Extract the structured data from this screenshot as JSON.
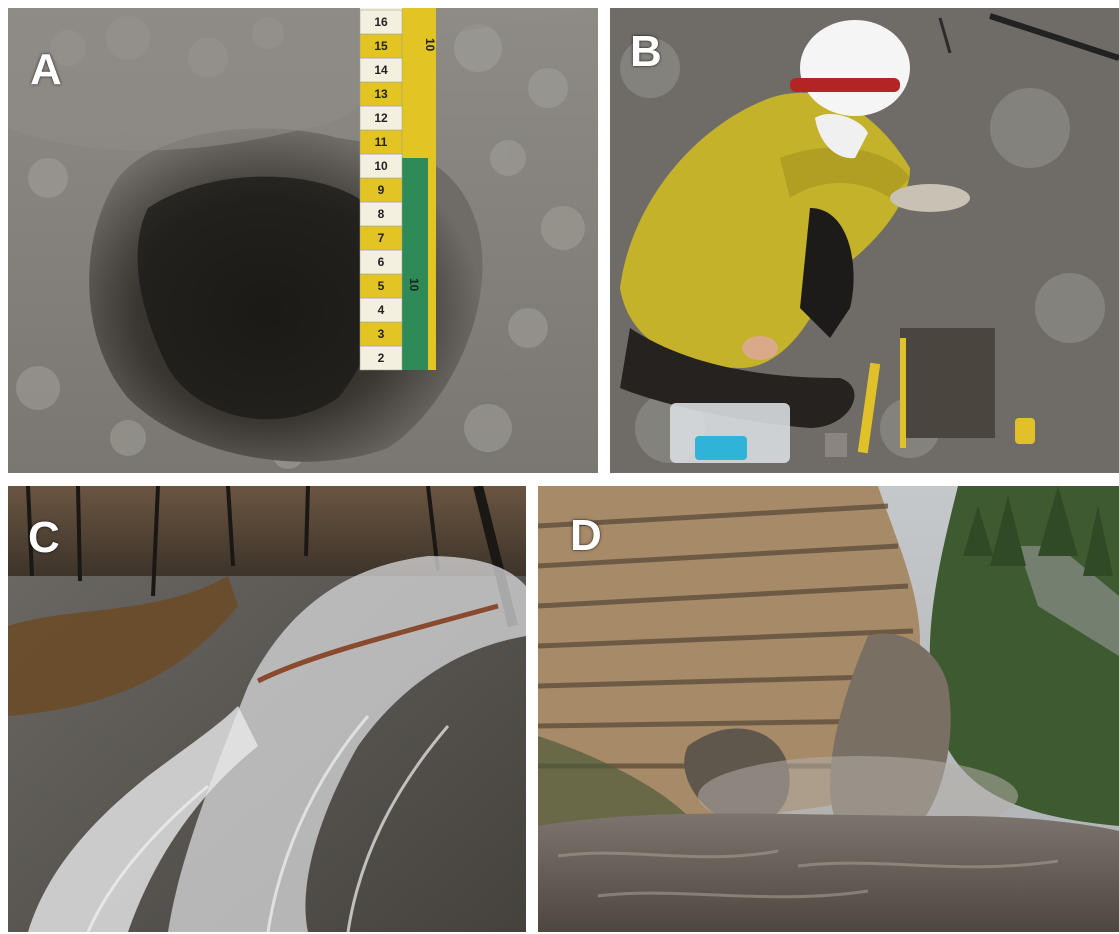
{
  "panels": [
    {
      "letter": "A"
    },
    {
      "letter": "B"
    },
    {
      "letter": "C"
    },
    {
      "letter": "D"
    }
  ],
  "ruler_a": {
    "numbers": [
      "2",
      "3",
      "4",
      "5",
      "6",
      "7",
      "8",
      "9",
      "10",
      "11",
      "12",
      "13",
      "14",
      "15",
      "16"
    ],
    "side_label": "10",
    "stripe_label": "10"
  },
  "colors": {
    "ash_grey": "#8d8a85",
    "burned_soil": "#2e2b27",
    "jacket_yellow": "#c4b22a",
    "ruler_yellow": "#e2c422",
    "ruler_green": "#2e8b57",
    "cliff_tan": "#a78a68",
    "muddy_water": "#6e675f"
  }
}
